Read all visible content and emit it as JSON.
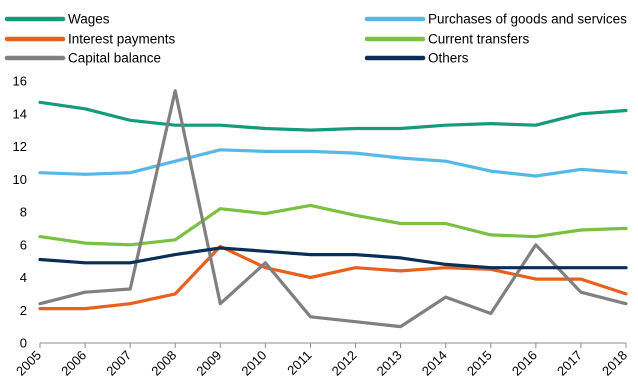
{
  "chart_data": {
    "type": "line",
    "title": "",
    "xlabel": "",
    "ylabel": "",
    "x": [
      "2005",
      "2006",
      "2007",
      "2008",
      "2009",
      "2010",
      "2011",
      "2012",
      "2013",
      "2014",
      "2015",
      "2016",
      "2017",
      "2018"
    ],
    "ylim": [
      0,
      16
    ],
    "yticks": [
      "0",
      "2",
      "4",
      "6",
      "8",
      "10",
      "12",
      "14",
      "16"
    ],
    "grid": false,
    "legend_position": "top",
    "series": [
      {
        "name": "Wages",
        "color": "#159A7A",
        "values": [
          14.7,
          14.3,
          13.6,
          13.3,
          13.3,
          13.1,
          13.0,
          13.1,
          13.1,
          13.3,
          13.4,
          13.3,
          14.0,
          14.2
        ]
      },
      {
        "name": "Purchases of goods and services",
        "color": "#55B8E6",
        "values": [
          10.4,
          10.3,
          10.4,
          11.1,
          11.8,
          11.7,
          11.7,
          11.6,
          11.3,
          11.1,
          10.5,
          10.2,
          10.6,
          10.4
        ]
      },
      {
        "name": "Interest payments",
        "color": "#E8601C",
        "values": [
          2.1,
          2.1,
          2.4,
          3.0,
          5.9,
          4.6,
          4.0,
          4.6,
          4.4,
          4.6,
          4.5,
          3.9,
          3.9,
          3.0
        ]
      },
      {
        "name": "Current transfers",
        "color": "#7AC143",
        "values": [
          6.5,
          6.1,
          6.0,
          6.3,
          8.2,
          7.9,
          8.4,
          7.8,
          7.3,
          7.3,
          6.6,
          6.5,
          6.9,
          7.0
        ]
      },
      {
        "name": "Capital balance",
        "color": "#808080",
        "values": [
          2.4,
          3.1,
          3.3,
          15.4,
          2.4,
          4.9,
          1.6,
          1.3,
          1.0,
          2.8,
          1.8,
          6.0,
          3.1,
          2.4
        ]
      },
      {
        "name": "Others",
        "color": "#0B2E59",
        "values": [
          5.1,
          4.9,
          4.9,
          5.4,
          5.8,
          5.6,
          5.4,
          5.4,
          5.2,
          4.8,
          4.6,
          4.6,
          4.6,
          4.6
        ]
      }
    ]
  }
}
